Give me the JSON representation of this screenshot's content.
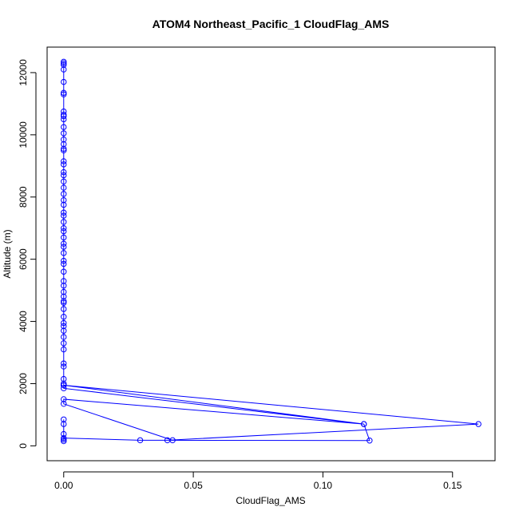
{
  "chart_data": {
    "type": "line",
    "title": "ATOM4 Northeast_Pacific_1 CloudFlag_AMS",
    "xlabel": "CloudFlag_AMS",
    "ylabel": "Altitude (m)",
    "xlim": [
      -0.0064,
      0.1664
    ],
    "ylim": [
      -478,
      12820
    ],
    "xticks": [
      0.0,
      0.05,
      0.1,
      0.15
    ],
    "xtick_labels": [
      "0.00",
      "0.05",
      "0.10",
      "0.15"
    ],
    "yticks": [
      0,
      2000,
      4000,
      6000,
      8000,
      10000,
      12000
    ],
    "ytick_labels": [
      "0",
      "2000",
      "4000",
      "6000",
      "8000",
      "10000",
      "12000"
    ],
    "grid": false,
    "series": [
      {
        "color": "#0000ff",
        "marker": "open-circle",
        "points": [
          {
            "x": 0.0,
            "y": 12350
          },
          {
            "x": 0.0,
            "y": 12300
          },
          {
            "x": 0.0,
            "y": 12250
          },
          {
            "x": 0.0,
            "y": 12100
          },
          {
            "x": 0.0,
            "y": 11700
          },
          {
            "x": 0.0,
            "y": 11350
          },
          {
            "x": 0.0,
            "y": 11300
          },
          {
            "x": 0.0,
            "y": 10750
          },
          {
            "x": 0.0,
            "y": 10650
          },
          {
            "x": 0.0,
            "y": 10600
          },
          {
            "x": 0.0,
            "y": 10500
          },
          {
            "x": 0.0,
            "y": 10250
          },
          {
            "x": 0.0,
            "y": 10050
          },
          {
            "x": 0.0,
            "y": 9850
          },
          {
            "x": 0.0,
            "y": 9700
          },
          {
            "x": 0.0,
            "y": 9550
          },
          {
            "x": 0.0,
            "y": 9500
          },
          {
            "x": 0.0,
            "y": 9150
          },
          {
            "x": 0.0,
            "y": 9050
          },
          {
            "x": 0.0,
            "y": 8800
          },
          {
            "x": 0.0,
            "y": 8700
          },
          {
            "x": 0.0,
            "y": 8500
          },
          {
            "x": 0.0,
            "y": 8300
          },
          {
            "x": 0.0,
            "y": 8100
          },
          {
            "x": 0.0,
            "y": 7900
          },
          {
            "x": 0.0,
            "y": 7750
          },
          {
            "x": 0.0,
            "y": 7500
          },
          {
            "x": 0.0,
            "y": 7400
          },
          {
            "x": 0.0,
            "y": 7200
          },
          {
            "x": 0.0,
            "y": 7000
          },
          {
            "x": 0.0,
            "y": 6900
          },
          {
            "x": 0.0,
            "y": 6700
          },
          {
            "x": 0.0,
            "y": 6500
          },
          {
            "x": 0.0,
            "y": 6400
          },
          {
            "x": 0.0,
            "y": 6200
          },
          {
            "x": 0.0,
            "y": 5950
          },
          {
            "x": 0.0,
            "y": 5850
          },
          {
            "x": 0.0,
            "y": 5600
          },
          {
            "x": 0.0,
            "y": 5300
          },
          {
            "x": 0.0,
            "y": 5150
          },
          {
            "x": 0.0,
            "y": 4950
          },
          {
            "x": 0.0,
            "y": 4800
          },
          {
            "x": 0.0,
            "y": 4650
          },
          {
            "x": 0.0,
            "y": 4600
          },
          {
            "x": 0.0,
            "y": 4400
          },
          {
            "x": 0.0,
            "y": 4150
          },
          {
            "x": 0.0,
            "y": 3950
          },
          {
            "x": 0.0,
            "y": 3850
          },
          {
            "x": 0.0,
            "y": 3700
          },
          {
            "x": 0.0,
            "y": 3500
          },
          {
            "x": 0.0,
            "y": 3300
          },
          {
            "x": 0.0,
            "y": 3100
          },
          {
            "x": 0.0,
            "y": 2650
          },
          {
            "x": 0.0,
            "y": 2550
          },
          {
            "x": 0.0,
            "y": 2150
          },
          {
            "x": 0.0,
            "y": 2000
          },
          {
            "x": 0.0,
            "y": 1950
          },
          {
            "x": 0.1158,
            "y": 700
          },
          {
            "x": 0.0,
            "y": 1850
          },
          {
            "x": 0.0,
            "y": 1950
          },
          {
            "x": 0.16,
            "y": 700
          },
          {
            "x": 0.04,
            "y": 180
          },
          {
            "x": 0.118,
            "y": 170
          },
          {
            "x": 0.1158,
            "y": 700
          },
          {
            "x": 0.0,
            "y": 1500
          },
          {
            "x": 0.0,
            "y": 1350
          },
          {
            "x": 0.042,
            "y": 180
          },
          {
            "x": 0.0295,
            "y": 180
          },
          {
            "x": 0.0,
            "y": 250
          },
          {
            "x": 0.0,
            "y": 380
          },
          {
            "x": 0.0,
            "y": 700
          },
          {
            "x": 0.0,
            "y": 850
          },
          {
            "x": 0.0,
            "y": 200
          },
          {
            "x": 0.0,
            "y": 150
          }
        ]
      }
    ]
  }
}
